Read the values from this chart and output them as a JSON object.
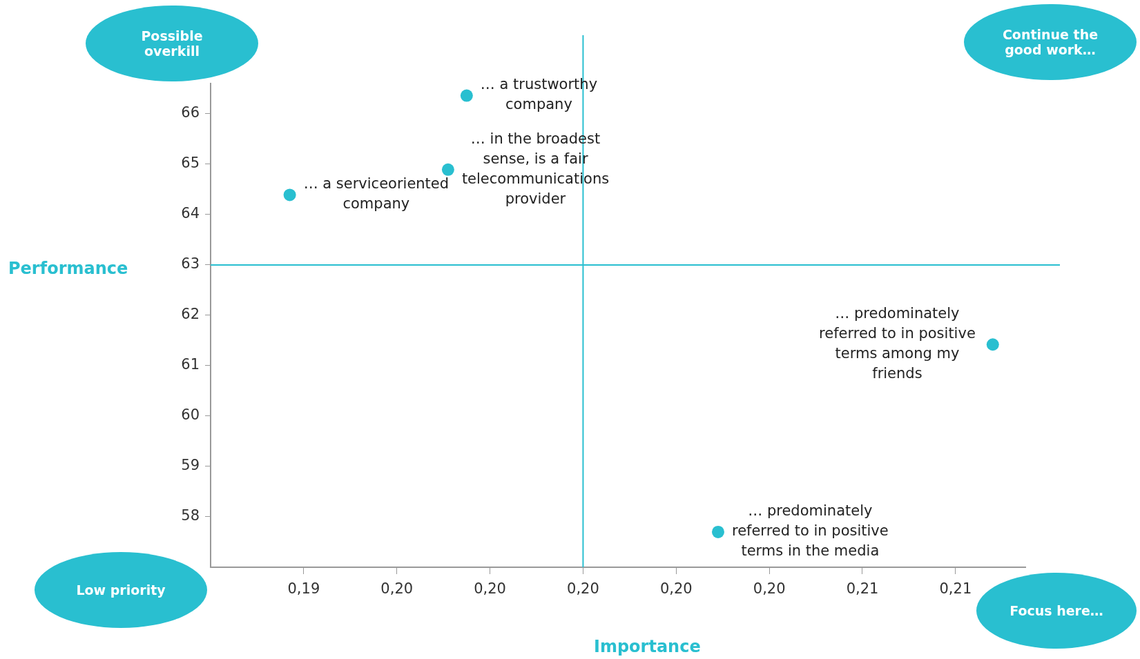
{
  "chart_data": {
    "type": "scatter",
    "xlabel": "Importance",
    "ylabel": "Performance",
    "x": [
      0.1975,
      0.1971,
      0.1937,
      0.2088,
      0.2029
    ],
    "series": [
      {
        "color": "#29bfd0",
        "values": [
          66.36,
          64.89,
          64.39,
          61.42,
          57.7
        ]
      }
    ],
    "xlim": [
      0.192,
      0.2095
    ],
    "ylim": [
      57,
      66.6
    ],
    "xticks": [
      {
        "value": 0.194,
        "label": "0,19"
      },
      {
        "value": 0.196,
        "label": "0,20"
      },
      {
        "value": 0.198,
        "label": "0,20"
      },
      {
        "value": 0.2,
        "label": "0,20"
      },
      {
        "value": 0.202,
        "label": "0,20"
      },
      {
        "value": 0.204,
        "label": "0,20"
      },
      {
        "value": 0.206,
        "label": "0,21"
      },
      {
        "value": 0.208,
        "label": "0,21"
      }
    ],
    "yticks": [
      58,
      59,
      60,
      61,
      62,
      63,
      64,
      65,
      66
    ],
    "grid": false,
    "legend": false,
    "marker": "circle",
    "ref_lines": [
      {
        "axis": "x",
        "value": 0.2,
        "color": "#29bfd0"
      },
      {
        "axis": "y",
        "value": 63,
        "color": "#29bfd0"
      }
    ],
    "annotations": [
      "Possible\noverkill",
      "Continue the\ngood work…",
      "Low priority",
      "Focus here…",
      {
        "text": "… a trustworthy\ncompany",
        "x": 0.1975,
        "y": 66.36
      },
      {
        "text": "… in the broadest\nsense, is a fair\ntelecommunications\nprovider",
        "x": 0.1971,
        "y": 64.89
      },
      {
        "text": "… a serviceoriented\ncompany",
        "x": 0.1937,
        "y": 64.39
      },
      {
        "text": "… predominately\nreferred to in positive\nterms among my\nfriends",
        "x": 0.2088,
        "y": 61.42
      },
      {
        "text": "… predominately\nreferred to in positive\nterms in the media",
        "x": 0.2029,
        "y": 57.7
      }
    ]
  }
}
